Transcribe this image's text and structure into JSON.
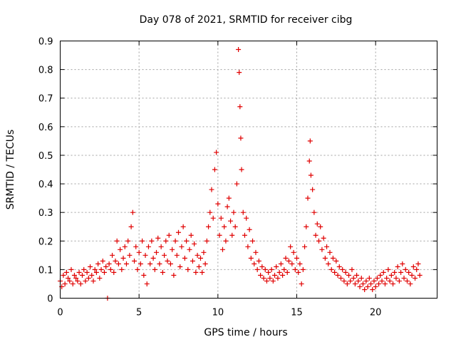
{
  "chart_data": {
    "type": "scatter",
    "title": "Day 078 of 2021, SRMTID for receiver cibg",
    "xlabel": "GPS time / hours",
    "ylabel": "SRMTID / TECUs",
    "xlim": [
      0,
      23.9
    ],
    "ylim": [
      0,
      0.9
    ],
    "x_ticks": [
      0,
      5,
      10,
      15,
      20
    ],
    "y_ticks": [
      0,
      0.1,
      0.2,
      0.3,
      0.4,
      0.5,
      0.6,
      0.7,
      0.8,
      0.9
    ],
    "x_tick_labels": [
      "0",
      "5",
      "10",
      "15",
      "20"
    ],
    "y_tick_labels": [
      "0",
      "0.1",
      "0.2",
      "0.3",
      "0.4",
      "0.5",
      "0.6",
      "0.7",
      "0.8",
      "0.9"
    ],
    "grid": true,
    "marker": "+",
    "marker_color": "#e00000",
    "series": [
      {
        "name": "SRMTID",
        "points": [
          [
            0.0,
            0.06
          ],
          [
            0.1,
            0.04
          ],
          [
            0.2,
            0.08
          ],
          [
            0.3,
            0.05
          ],
          [
            0.4,
            0.09
          ],
          [
            0.5,
            0.07
          ],
          [
            0.6,
            0.06
          ],
          [
            0.7,
            0.1
          ],
          [
            0.8,
            0.05
          ],
          [
            0.9,
            0.08
          ],
          [
            1.0,
            0.07
          ],
          [
            1.1,
            0.06
          ],
          [
            1.2,
            0.09
          ],
          [
            1.3,
            0.05
          ],
          [
            1.4,
            0.08
          ],
          [
            1.5,
            0.1
          ],
          [
            1.6,
            0.06
          ],
          [
            1.7,
            0.09
          ],
          [
            1.8,
            0.07
          ],
          [
            1.9,
            0.11
          ],
          [
            2.0,
            0.08
          ],
          [
            2.1,
            0.06
          ],
          [
            2.2,
            0.1
          ],
          [
            2.3,
            0.09
          ],
          [
            2.4,
            0.12
          ],
          [
            2.5,
            0.07
          ],
          [
            2.6,
            0.1
          ],
          [
            2.7,
            0.13
          ],
          [
            2.8,
            0.09
          ],
          [
            2.9,
            0.11
          ],
          [
            3.0,
            0.0
          ],
          [
            3.1,
            0.12
          ],
          [
            3.2,
            0.1
          ],
          [
            3.3,
            0.15
          ],
          [
            3.4,
            0.09
          ],
          [
            3.5,
            0.13
          ],
          [
            3.6,
            0.2
          ],
          [
            3.7,
            0.12
          ],
          [
            3.8,
            0.17
          ],
          [
            3.9,
            0.1
          ],
          [
            4.0,
            0.14
          ],
          [
            4.1,
            0.18
          ],
          [
            4.2,
            0.12
          ],
          [
            4.3,
            0.2
          ],
          [
            4.4,
            0.15
          ],
          [
            4.5,
            0.25
          ],
          [
            4.6,
            0.3
          ],
          [
            4.7,
            0.13
          ],
          [
            4.8,
            0.18
          ],
          [
            4.9,
            0.1
          ],
          [
            5.0,
            0.16
          ],
          [
            5.1,
            0.12
          ],
          [
            5.2,
            0.2
          ],
          [
            5.3,
            0.08
          ],
          [
            5.4,
            0.15
          ],
          [
            5.5,
            0.05
          ],
          [
            5.6,
            0.18
          ],
          [
            5.7,
            0.12
          ],
          [
            5.8,
            0.2
          ],
          [
            5.9,
            0.14
          ],
          [
            6.0,
            0.1
          ],
          [
            6.1,
            0.16
          ],
          [
            6.2,
            0.21
          ],
          [
            6.3,
            0.12
          ],
          [
            6.4,
            0.18
          ],
          [
            6.5,
            0.09
          ],
          [
            6.6,
            0.15
          ],
          [
            6.7,
            0.2
          ],
          [
            6.8,
            0.13
          ],
          [
            6.9,
            0.22
          ],
          [
            7.0,
            0.12
          ],
          [
            7.1,
            0.17
          ],
          [
            7.2,
            0.08
          ],
          [
            7.3,
            0.2
          ],
          [
            7.4,
            0.15
          ],
          [
            7.5,
            0.23
          ],
          [
            7.6,
            0.11
          ],
          [
            7.7,
            0.18
          ],
          [
            7.8,
            0.25
          ],
          [
            7.9,
            0.14
          ],
          [
            8.0,
            0.2
          ],
          [
            8.1,
            0.1
          ],
          [
            8.2,
            0.17
          ],
          [
            8.3,
            0.22
          ],
          [
            8.4,
            0.13
          ],
          [
            8.5,
            0.19
          ],
          [
            8.6,
            0.09
          ],
          [
            8.7,
            0.15
          ],
          [
            8.8,
            0.11
          ],
          [
            8.9,
            0.14
          ],
          [
            9.0,
            0.09
          ],
          [
            9.1,
            0.16
          ],
          [
            9.2,
            0.12
          ],
          [
            9.3,
            0.2
          ],
          [
            9.4,
            0.25
          ],
          [
            9.5,
            0.3
          ],
          [
            9.6,
            0.38
          ],
          [
            9.7,
            0.28
          ],
          [
            9.8,
            0.45
          ],
          [
            9.9,
            0.51
          ],
          [
            10.0,
            0.33
          ],
          [
            10.1,
            0.22
          ],
          [
            10.2,
            0.28
          ],
          [
            10.3,
            0.17
          ],
          [
            10.4,
            0.25
          ],
          [
            10.5,
            0.2
          ],
          [
            10.6,
            0.32
          ],
          [
            10.7,
            0.35
          ],
          [
            10.8,
            0.27
          ],
          [
            10.9,
            0.22
          ],
          [
            11.0,
            0.3
          ],
          [
            11.1,
            0.25
          ],
          [
            11.2,
            0.4
          ],
          [
            11.3,
            0.87
          ],
          [
            11.35,
            0.79
          ],
          [
            11.4,
            0.67
          ],
          [
            11.45,
            0.56
          ],
          [
            11.5,
            0.45
          ],
          [
            11.6,
            0.3
          ],
          [
            11.7,
            0.22
          ],
          [
            11.8,
            0.28
          ],
          [
            11.9,
            0.18
          ],
          [
            12.0,
            0.24
          ],
          [
            12.1,
            0.14
          ],
          [
            12.2,
            0.2
          ],
          [
            12.3,
            0.12
          ],
          [
            12.4,
            0.16
          ],
          [
            12.5,
            0.1
          ],
          [
            12.6,
            0.13
          ],
          [
            12.7,
            0.08
          ],
          [
            12.8,
            0.11
          ],
          [
            12.9,
            0.07
          ],
          [
            13.0,
            0.1
          ],
          [
            13.1,
            0.06
          ],
          [
            13.2,
            0.09
          ],
          [
            13.3,
            0.07
          ],
          [
            13.4,
            0.1
          ],
          [
            13.5,
            0.06
          ],
          [
            13.6,
            0.08
          ],
          [
            13.7,
            0.11
          ],
          [
            13.8,
            0.07
          ],
          [
            13.9,
            0.09
          ],
          [
            14.0,
            0.12
          ],
          [
            14.1,
            0.08
          ],
          [
            14.2,
            0.1
          ],
          [
            14.3,
            0.14
          ],
          [
            14.4,
            0.09
          ],
          [
            14.5,
            0.13
          ],
          [
            14.6,
            0.18
          ],
          [
            14.7,
            0.12
          ],
          [
            14.8,
            0.16
          ],
          [
            14.9,
            0.1
          ],
          [
            15.0,
            0.14
          ],
          [
            15.1,
            0.09
          ],
          [
            15.2,
            0.12
          ],
          [
            15.3,
            0.05
          ],
          [
            15.4,
            0.1
          ],
          [
            15.5,
            0.18
          ],
          [
            15.6,
            0.25
          ],
          [
            15.7,
            0.35
          ],
          [
            15.8,
            0.48
          ],
          [
            15.85,
            0.55
          ],
          [
            15.9,
            0.43
          ],
          [
            16.0,
            0.38
          ],
          [
            16.1,
            0.3
          ],
          [
            16.2,
            0.22
          ],
          [
            16.3,
            0.26
          ],
          [
            16.4,
            0.2
          ],
          [
            16.5,
            0.25
          ],
          [
            16.6,
            0.17
          ],
          [
            16.7,
            0.21
          ],
          [
            16.8,
            0.14
          ],
          [
            16.9,
            0.18
          ],
          [
            17.0,
            0.12
          ],
          [
            17.1,
            0.16
          ],
          [
            17.2,
            0.1
          ],
          [
            17.3,
            0.14
          ],
          [
            17.4,
            0.09
          ],
          [
            17.5,
            0.13
          ],
          [
            17.6,
            0.08
          ],
          [
            17.7,
            0.11
          ],
          [
            17.8,
            0.07
          ],
          [
            17.9,
            0.1
          ],
          [
            18.0,
            0.06
          ],
          [
            18.1,
            0.09
          ],
          [
            18.2,
            0.05
          ],
          [
            18.3,
            0.08
          ],
          [
            18.4,
            0.06
          ],
          [
            18.5,
            0.1
          ],
          [
            18.6,
            0.07
          ],
          [
            18.7,
            0.05
          ],
          [
            18.8,
            0.08
          ],
          [
            18.9,
            0.06
          ],
          [
            19.0,
            0.04
          ],
          [
            19.1,
            0.07
          ],
          [
            19.2,
            0.05
          ],
          [
            19.3,
            0.03
          ],
          [
            19.4,
            0.06
          ],
          [
            19.5,
            0.04
          ],
          [
            19.6,
            0.07
          ],
          [
            19.7,
            0.05
          ],
          [
            19.8,
            0.03
          ],
          [
            19.9,
            0.06
          ],
          [
            20.0,
            0.04
          ],
          [
            20.1,
            0.07
          ],
          [
            20.2,
            0.05
          ],
          [
            20.3,
            0.08
          ],
          [
            20.4,
            0.06
          ],
          [
            20.5,
            0.09
          ],
          [
            20.6,
            0.05
          ],
          [
            20.7,
            0.07
          ],
          [
            20.8,
            0.1
          ],
          [
            20.9,
            0.06
          ],
          [
            21.0,
            0.08
          ],
          [
            21.1,
            0.05
          ],
          [
            21.2,
            0.09
          ],
          [
            21.3,
            0.07
          ],
          [
            21.4,
            0.11
          ],
          [
            21.5,
            0.06
          ],
          [
            21.6,
            0.09
          ],
          [
            21.7,
            0.12
          ],
          [
            21.8,
            0.07
          ],
          [
            21.9,
            0.1
          ],
          [
            22.0,
            0.06
          ],
          [
            22.1,
            0.09
          ],
          [
            22.2,
            0.05
          ],
          [
            22.3,
            0.08
          ],
          [
            22.4,
            0.11
          ],
          [
            22.5,
            0.07
          ],
          [
            22.6,
            0.1
          ],
          [
            22.7,
            0.12
          ],
          [
            22.8,
            0.08
          ]
        ]
      }
    ]
  }
}
